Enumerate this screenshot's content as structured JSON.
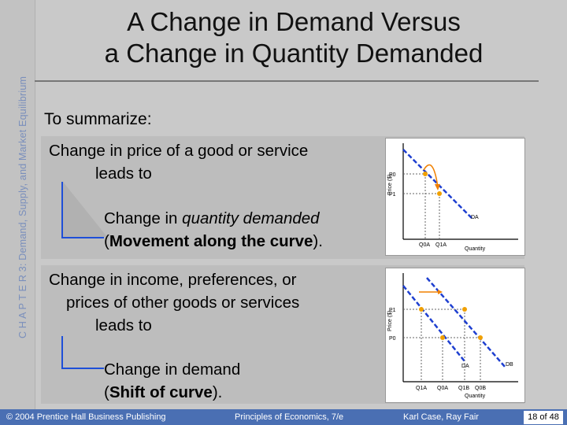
{
  "sidebar": {
    "chapter_label": "C H A P T E R 3: Demand, Supply, and Market Equilibrium"
  },
  "slide": {
    "title_line1": "A Change in Demand Versus",
    "title_line2": "a Change in Quantity Demanded",
    "intro": "To summarize:"
  },
  "box1": {
    "line1": "Change in price of a good or service",
    "line2": "leads to",
    "result_pre": "Change in ",
    "result_em": "quantity demanded",
    "result2_open": "(",
    "result2_bold": "Movement along the curve",
    "result2_close": ")."
  },
  "box2": {
    "line1": "Change in income, preferences, or",
    "line2": "prices of other goods or services",
    "line3": "leads to",
    "result": "Change in demand",
    "result2_open": "(",
    "result2_bold": "Shift of curve",
    "result2_close": ")."
  },
  "graph1": {
    "ylabel": "Price ($)",
    "xlabel": "Quantity",
    "p0": "P0",
    "p1": "P1",
    "q0": "Q0A",
    "q1": "Q1A",
    "curve": "DA"
  },
  "graph2": {
    "ylabel": "Price ($)",
    "xlabel": "Quantity",
    "p1": "P1",
    "p0": "P0",
    "q_labels": [
      "Q1A",
      "Q0A",
      "Q1B",
      "Q0B"
    ],
    "curve_a": "DA",
    "curve_b": "DB"
  },
  "footer": {
    "copyright": "© 2004 Prentice Hall Business Publishing",
    "book": "Principles of Economics, 7/e",
    "authors": "Karl Case, Ray Fair",
    "page": "18 of 48"
  },
  "colors": {
    "accent": "#1e4fd8",
    "footer_bg": "#4a6fb3",
    "point": "#f0a000"
  }
}
